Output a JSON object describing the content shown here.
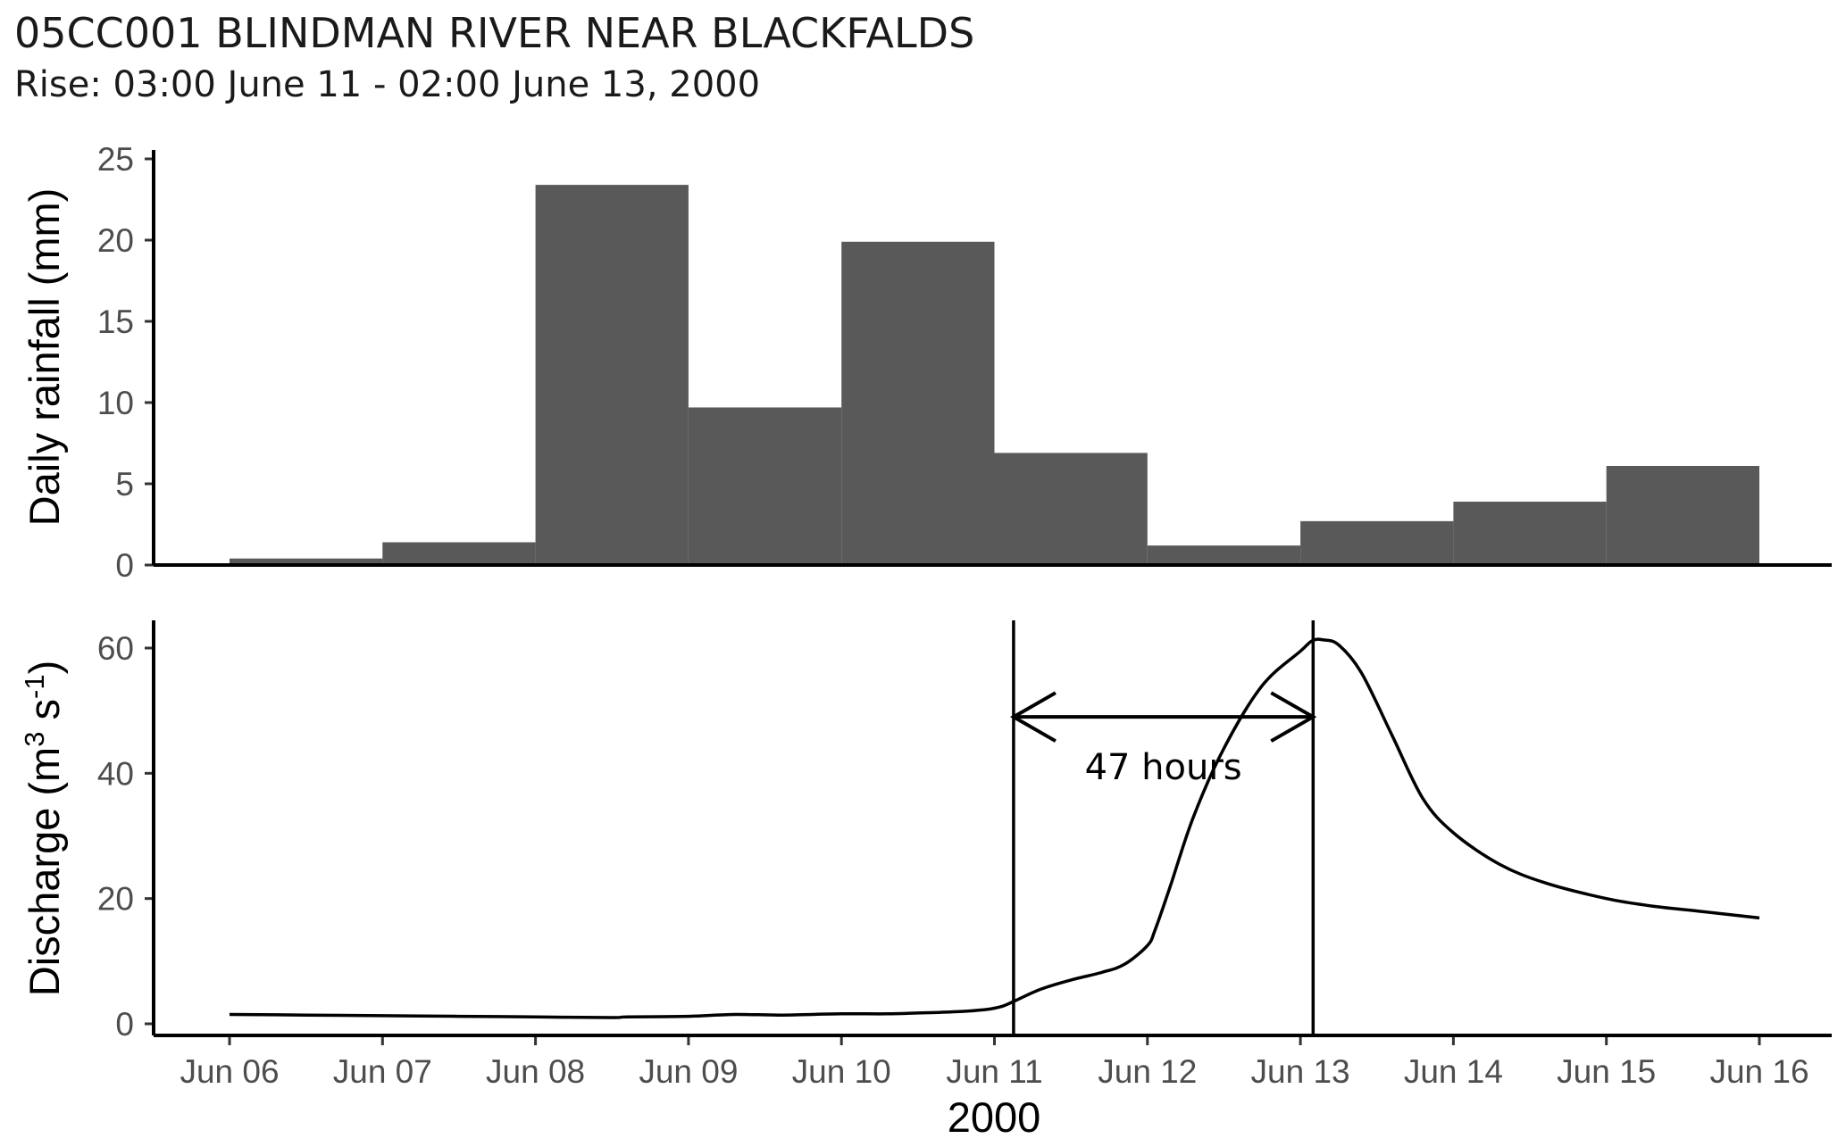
{
  "title": "05CC001 BLINDMAN RIVER NEAR BLACKFALDS",
  "subtitle": "Rise: 03:00 June 11 - 02:00 June 13, 2000",
  "chart_data": [
    {
      "type": "bar",
      "panel": "top",
      "ylabel": "Daily rainfall (mm)",
      "ylim": [
        0,
        25
      ],
      "yticks": [
        0,
        5,
        10,
        15,
        20,
        25
      ],
      "bar_color": "#595959",
      "categories": [
        "Jun 06",
        "Jun 07",
        "Jun 08",
        "Jun 09",
        "Jun 10",
        "Jun 11",
        "Jun 12",
        "Jun 13",
        "Jun 14",
        "Jun 15"
      ],
      "values": [
        0.4,
        1.4,
        23.4,
        9.7,
        19.9,
        6.9,
        1.2,
        2.7,
        3.9,
        6.1
      ],
      "grid": false
    },
    {
      "type": "line",
      "panel": "bottom",
      "ylabel_main": "Discharge (m",
      "ylabel_sup1": "3",
      "ylabel_mid": " s",
      "ylabel_sup2": "-1",
      "ylabel_end": ")",
      "ylim": [
        0,
        62
      ],
      "yticks": [
        0,
        20,
        40,
        60
      ],
      "xlabel": "2000",
      "xticks": [
        "Jun 06",
        "Jun 07",
        "Jun 08",
        "Jun 09",
        "Jun 10",
        "Jun 11",
        "Jun 12",
        "Jun 13",
        "Jun 14",
        "Jun 15",
        "Jun 16"
      ],
      "series": [
        {
          "x_days": [
            0,
            0.5,
            1,
            1.5,
            2,
            2.5,
            2.6,
            3,
            3.3,
            3.6,
            4,
            4.3,
            4.6,
            4.8,
            4.95,
            5.05,
            5.12,
            5.3,
            5.5,
            5.7,
            5.85,
            6.0,
            6.05,
            6.15,
            6.3,
            6.5,
            6.75,
            7.0,
            7.08,
            7.15,
            7.25,
            7.4,
            7.6,
            7.8,
            8.0,
            8.3,
            8.6,
            9.0,
            9.3,
            9.6,
            10.0
          ],
          "y": [
            1.5,
            1.4,
            1.3,
            1.2,
            1.1,
            1.0,
            1.1,
            1.2,
            1.5,
            1.4,
            1.6,
            1.6,
            1.8,
            2.0,
            2.3,
            2.8,
            3.5,
            5.5,
            7.0,
            8.2,
            9.5,
            12.5,
            15.0,
            22.0,
            33.0,
            44.0,
            54.0,
            59.5,
            61.2,
            61.3,
            60.5,
            56.0,
            46.0,
            36.0,
            30.5,
            25.5,
            22.5,
            20.0,
            18.8,
            18.0,
            16.9
          ]
        }
      ],
      "vlines_days": [
        5.125,
        7.083
      ],
      "annotation": {
        "text": "47 hours",
        "arrow_y": 49
      },
      "grid": false
    }
  ]
}
